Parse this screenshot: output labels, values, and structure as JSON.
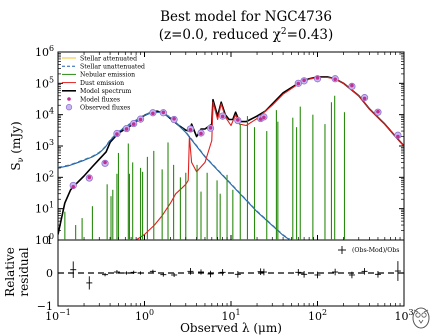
{
  "chart_data": {
    "type": "line",
    "title_line1": "Best model for NGC4736",
    "title_line2_prefix": "(z=0.0, reduced χ",
    "title_line2_sup": "2",
    "title_line2_suffix": "=0.43)",
    "xlabel": "Observed λ (μm)",
    "ylabel_main": "S",
    "ylabel_main_sub": "ν",
    "ylabel_main_unit": " (mJy)",
    "ylabel_resid_line1": "Relative",
    "ylabel_resid_line2": "residual",
    "xscale": "log",
    "yscale": "log",
    "xlim": [
      0.1,
      1000
    ],
    "ylim": [
      1,
      1000000
    ],
    "resid_ylim": [
      -1,
      1
    ],
    "grid": false,
    "legend_position": "top-left",
    "x_ticks": [
      {
        "value": 0.1,
        "label_base": "10",
        "label_exp": "−1"
      },
      {
        "value": 1,
        "label_base": "10",
        "label_exp": "0"
      },
      {
        "value": 10,
        "label_base": "10",
        "label_exp": "1"
      },
      {
        "value": 100,
        "label_base": "10",
        "label_exp": "2"
      },
      {
        "value": 1000,
        "label_base": "10",
        "label_exp": "3"
      }
    ],
    "y_ticks": [
      {
        "value": 1,
        "label_base": "10",
        "label_exp": "0"
      },
      {
        "value": 10,
        "label_base": "10",
        "label_exp": "1"
      },
      {
        "value": 100,
        "label_base": "10",
        "label_exp": "2"
      },
      {
        "value": 1000,
        "label_base": "10",
        "label_exp": "3"
      },
      {
        "value": 10000,
        "label_base": "10",
        "label_exp": "4"
      },
      {
        "value": 100000,
        "label_base": "10",
        "label_exp": "5"
      },
      {
        "value": 1000000,
        "label_base": "10",
        "label_exp": "6"
      }
    ],
    "resid_ticks": [
      {
        "value": 1,
        "label": "1"
      },
      {
        "value": 0,
        "label": "0"
      },
      {
        "value": -1,
        "label": "−1"
      }
    ],
    "legend": [
      {
        "label": "Stellar attenuated",
        "color": "#f7c325",
        "style": "solid"
      },
      {
        "label": "Stellar unattenuated",
        "color": "#1f5fb4",
        "style": "dashed"
      },
      {
        "label": "Nebular emission",
        "color": "#2a8a10",
        "style": "solid"
      },
      {
        "label": "Dust emission",
        "color": "#e02020",
        "style": "solid"
      },
      {
        "label": "Model spectrum",
        "color": "#000000",
        "style": "solid"
      },
      {
        "label": "Model fluxes",
        "color": "#c03090",
        "style": "dot"
      },
      {
        "label": "Observed fluxes",
        "color": "#b0a0e0",
        "style": "open-circle"
      }
    ],
    "resid_legend": "(Obs-Mod)/Obs",
    "series": [
      {
        "name": "Model spectrum",
        "color": "#000000",
        "x": [
          0.1,
          0.12,
          0.14,
          0.16,
          0.2,
          0.25,
          0.3,
          0.36,
          0.4,
          0.5,
          0.6,
          0.7,
          0.8,
          1.0,
          1.2,
          1.4,
          1.7,
          2.0,
          2.5,
          3.0,
          3.3,
          3.5,
          4.0,
          4.5,
          5.0,
          6.0,
          6.2,
          7.0,
          7.7,
          8.6,
          9.5,
          10.5,
          11.3,
          12.5,
          15,
          20,
          25,
          30,
          40,
          60,
          80,
          100,
          130,
          160,
          200,
          300,
          400,
          600,
          800,
          1000
        ],
        "y": [
          1.5,
          15,
          40,
          60,
          110,
          220,
          380,
          650,
          1300,
          2600,
          3500,
          4500,
          6000,
          9500,
          12000,
          13000,
          11000,
          7500,
          4500,
          3200,
          3000,
          5000,
          2000,
          3500,
          3500,
          5000,
          30000,
          9000,
          25000,
          10000,
          7000,
          7000,
          12000,
          6000,
          6000,
          9000,
          13000,
          22000,
          50000,
          100000,
          140000,
          160000,
          160000,
          140000,
          100000,
          40000,
          15000,
          5000,
          2000,
          1000
        ]
      },
      {
        "name": "Stellar attenuated",
        "color": "#1f5fb4",
        "x": [
          0.1,
          0.11,
          0.13,
          0.16,
          0.2,
          0.25,
          0.3,
          0.35,
          0.4,
          0.5,
          0.6,
          0.8,
          1.0,
          1.2,
          1.5,
          2.0,
          3.0,
          5.0,
          10,
          20,
          40,
          80
        ],
        "y": [
          200,
          210,
          230,
          280,
          350,
          450,
          600,
          900,
          1500,
          2800,
          4000,
          6500,
          9500,
          11500,
          12000,
          8000,
          2700,
          450,
          60,
          8,
          1.4,
          0.4
        ]
      },
      {
        "name": "Dust emission",
        "color": "#e02020",
        "x": [
          0.8,
          1.0,
          1.3,
          1.6,
          2.0,
          2.3,
          2.7,
          3.0,
          3.2,
          3.3,
          3.5,
          4.0,
          5.0,
          6.0,
          6.2,
          7.0,
          7.7,
          8.6,
          10,
          11.3,
          12.5,
          15,
          20,
          30,
          40,
          60,
          80,
          100,
          130,
          160,
          200,
          300,
          400,
          600,
          800,
          1000
        ],
        "y": [
          1.0,
          1.5,
          3.0,
          6,
          15,
          30,
          45,
          60,
          80,
          2000,
          300,
          150,
          300,
          1500,
          25000,
          7000,
          22000,
          8500,
          4500,
          10000,
          5000,
          4500,
          7500,
          20000,
          45000,
          95000,
          135000,
          155000,
          155000,
          140000,
          100000,
          40000,
          15000,
          5000,
          2000,
          1000
        ]
      },
      {
        "name": "Nebular emission",
        "color": "#2a8a10",
        "style": "spikes",
        "x": [
          0.12,
          0.16,
          0.19,
          0.25,
          0.37,
          0.41,
          0.43,
          0.48,
          0.5,
          0.65,
          0.67,
          0.73,
          0.9,
          0.95,
          1.08,
          1.28,
          1.6,
          1.87,
          2.17,
          2.6,
          3.0,
          4.05,
          4.5,
          5.3,
          6.9,
          7.5,
          9.0,
          10.5,
          12.8,
          15.5,
          18.7,
          25.9,
          33.5,
          34.8,
          51.8,
          57.3,
          63.2,
          88.4,
          122,
          145,
          158,
          205
        ],
        "y": [
          8,
          3,
          5,
          12,
          60,
          25,
          40,
          130,
          600,
          1200,
          130,
          300,
          200,
          150,
          450,
          700,
          180,
          1300,
          250,
          100,
          140,
          250,
          35,
          140,
          80,
          30,
          120,
          40,
          5000,
          9000,
          4000,
          3000,
          14000,
          6000,
          8000,
          4000,
          18000,
          10000,
          5000,
          25000,
          40000,
          12000
        ]
      }
    ],
    "observed_fluxes": {
      "x": [
        0.15,
        0.23,
        0.35,
        0.48,
        0.62,
        0.75,
        0.9,
        1.25,
        1.65,
        2.2,
        3.4,
        4.5,
        5.8,
        8.0,
        12,
        22,
        24,
        60,
        70,
        100,
        160,
        250,
        350,
        500,
        850
      ],
      "y": [
        55,
        95,
        280,
        2500,
        3600,
        5200,
        7200,
        11500,
        11500,
        7000,
        3500,
        2600,
        3700,
        9000,
        6500,
        7500,
        8500,
        100000,
        120000,
        140000,
        140000,
        80000,
        35000,
        12000,
        2200
      ]
    },
    "model_fluxes": {
      "x": [
        0.15,
        0.23,
        0.35,
        0.48,
        0.62,
        0.75,
        0.9,
        1.25,
        1.65,
        2.2,
        3.4,
        4.5,
        5.8,
        8.0,
        12,
        22,
        24,
        60,
        70,
        100,
        160,
        250,
        350,
        500,
        850
      ],
      "y": [
        50,
        100,
        300,
        2400,
        3500,
        5000,
        7000,
        11000,
        11800,
        7400,
        3300,
        2500,
        3800,
        8800,
        6800,
        7200,
        8200,
        98000,
        125000,
        150000,
        135000,
        85000,
        33000,
        12500,
        2000
      ]
    },
    "residuals": {
      "x": [
        0.15,
        0.23,
        0.35,
        0.48,
        0.62,
        0.75,
        0.9,
        1.25,
        1.65,
        2.2,
        3.4,
        4.5,
        5.8,
        8.0,
        12,
        22,
        24,
        60,
        70,
        100,
        160,
        250,
        350,
        500,
        850
      ],
      "y": [
        0.1,
        -0.3,
        -0.05,
        0.03,
        0.0,
        0.02,
        0.0,
        0.05,
        -0.05,
        -0.06,
        0.05,
        0.03,
        -0.03,
        0.02,
        -0.04,
        0.04,
        0.03,
        0.02,
        -0.04,
        -0.06,
        0.03,
        -0.06,
        0.05,
        -0.04,
        0.06
      ],
      "err": [
        0.25,
        0.2,
        0.05,
        0.06,
        0.05,
        0.05,
        0.05,
        0.05,
        0.06,
        0.06,
        0.1,
        0.08,
        0.1,
        0.1,
        0.1,
        0.1,
        0.1,
        0.1,
        0.1,
        0.1,
        0.1,
        0.1,
        0.1,
        0.1,
        0.3
      ]
    }
  }
}
